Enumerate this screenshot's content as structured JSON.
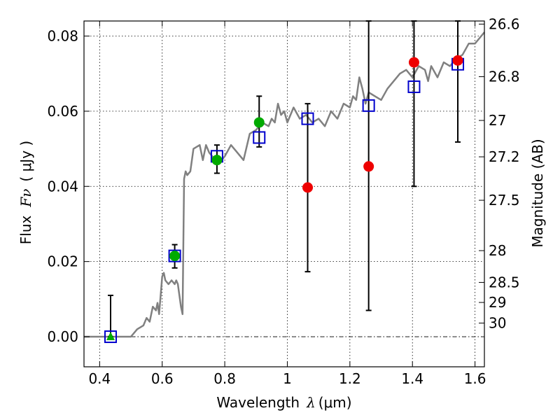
{
  "chart_data": {
    "type": "scatter",
    "xlabel": {
      "text": "Wavelength",
      "symbol": "λ",
      "unit": "(μm)"
    },
    "ylabel": {
      "text": "Flux",
      "symbol": "Fν",
      "unit": "( μJy )"
    },
    "y2label": "Magnitude (AB)",
    "xlim": [
      0.35,
      1.63
    ],
    "ylim": [
      -0.008,
      0.084
    ],
    "x_ticks": [
      0.4,
      0.6,
      0.8,
      1.0,
      1.2,
      1.4,
      1.6
    ],
    "x_tick_labels": [
      "0.4",
      "0.6",
      "0.8",
      "1",
      "1.2",
      "1.4",
      "1.6"
    ],
    "y_ticks": [
      0.0,
      0.02,
      0.04,
      0.06,
      0.08
    ],
    "y_tick_labels": [
      "0.00",
      "0.02",
      "0.04",
      "0.06",
      "0.08"
    ],
    "y2_ticks": [
      {
        "mag": 26.6,
        "label": "26.6"
      },
      {
        "mag": 26.8,
        "label": "26.8"
      },
      {
        "mag": 27.0,
        "label": "27"
      },
      {
        "mag": 27.2,
        "label": "27.2"
      },
      {
        "mag": 27.5,
        "label": "27.5"
      },
      {
        "mag": 28.0,
        "label": "28"
      },
      {
        "mag": 28.5,
        "label": "28.5"
      },
      {
        "mag": 29.0,
        "label": "29"
      },
      {
        "mag": 30.0,
        "label": "30"
      }
    ],
    "grid": true,
    "zero_line": true,
    "colors": {
      "model": "#808080",
      "model_photometry": "#0000cc",
      "detection": "#00aa00",
      "nondetection": "#ee0000",
      "errorbar": "#000000",
      "grid": "#000000"
    },
    "model_sed": {
      "x": [
        0.35,
        0.4,
        0.45,
        0.48,
        0.5,
        0.52,
        0.54,
        0.55,
        0.56,
        0.57,
        0.58,
        0.585,
        0.59,
        0.6,
        0.605,
        0.61,
        0.62,
        0.63,
        0.64,
        0.645,
        0.65,
        0.655,
        0.66,
        0.665,
        0.67,
        0.675,
        0.68,
        0.69,
        0.7,
        0.72,
        0.73,
        0.74,
        0.75,
        0.76,
        0.78,
        0.8,
        0.82,
        0.84,
        0.86,
        0.88,
        0.9,
        0.92,
        0.94,
        0.95,
        0.96,
        0.97,
        0.98,
        0.99,
        1.0,
        1.02,
        1.04,
        1.06,
        1.08,
        1.1,
        1.12,
        1.14,
        1.16,
        1.18,
        1.2,
        1.21,
        1.22,
        1.23,
        1.24,
        1.25,
        1.26,
        1.28,
        1.3,
        1.32,
        1.34,
        1.36,
        1.38,
        1.4,
        1.42,
        1.44,
        1.45,
        1.46,
        1.48,
        1.5,
        1.52,
        1.54,
        1.56,
        1.58,
        1.6,
        1.62,
        1.63
      ],
      "y": [
        0.0,
        0.0,
        0.0,
        0.0,
        0.0,
        0.002,
        0.003,
        0.005,
        0.004,
        0.008,
        0.007,
        0.009,
        0.006,
        0.016,
        0.017,
        0.015,
        0.014,
        0.015,
        0.014,
        0.015,
        0.014,
        0.011,
        0.008,
        0.006,
        0.042,
        0.044,
        0.043,
        0.044,
        0.05,
        0.051,
        0.047,
        0.051,
        0.049,
        0.048,
        0.046,
        0.048,
        0.051,
        0.049,
        0.047,
        0.054,
        0.055,
        0.057,
        0.056,
        0.058,
        0.057,
        0.062,
        0.059,
        0.06,
        0.057,
        0.061,
        0.058,
        0.059,
        0.057,
        0.058,
        0.056,
        0.06,
        0.058,
        0.062,
        0.061,
        0.064,
        0.063,
        0.069,
        0.066,
        0.062,
        0.065,
        0.064,
        0.063,
        0.066,
        0.068,
        0.07,
        0.071,
        0.069,
        0.072,
        0.071,
        0.068,
        0.072,
        0.069,
        0.073,
        0.072,
        0.074,
        0.075,
        0.078,
        0.078,
        0.08,
        0.081
      ]
    },
    "model_photometry": {
      "x": [
        0.435,
        0.64,
        0.775,
        0.91,
        1.065,
        1.26,
        1.405,
        1.545
      ],
      "y": [
        0.0,
        0.0215,
        0.048,
        0.053,
        0.058,
        0.0615,
        0.0665,
        0.0725
      ]
    },
    "detections": {
      "x": [
        0.435,
        0.64,
        0.775,
        0.91
      ],
      "y": [
        0.0,
        0.0215,
        0.047,
        0.057
      ],
      "yerr": [
        [
          0.0,
          0.011
        ],
        [
          0.0183,
          0.0245
        ],
        [
          0.0435,
          0.051
        ],
        [
          0.0505,
          0.064
        ]
      ],
      "markers": [
        "triangle",
        "circle",
        "circle",
        "circle"
      ]
    },
    "nondetections": {
      "x": [
        1.065,
        1.26,
        1.405,
        1.545
      ],
      "y": [
        0.0397,
        0.0453,
        0.073,
        0.0735
      ],
      "yerr": [
        [
          0.0173,
          0.062
        ],
        [
          0.007,
          0.084
        ],
        [
          0.04,
          0.084
        ],
        [
          0.0518,
          0.084
        ]
      ]
    }
  }
}
